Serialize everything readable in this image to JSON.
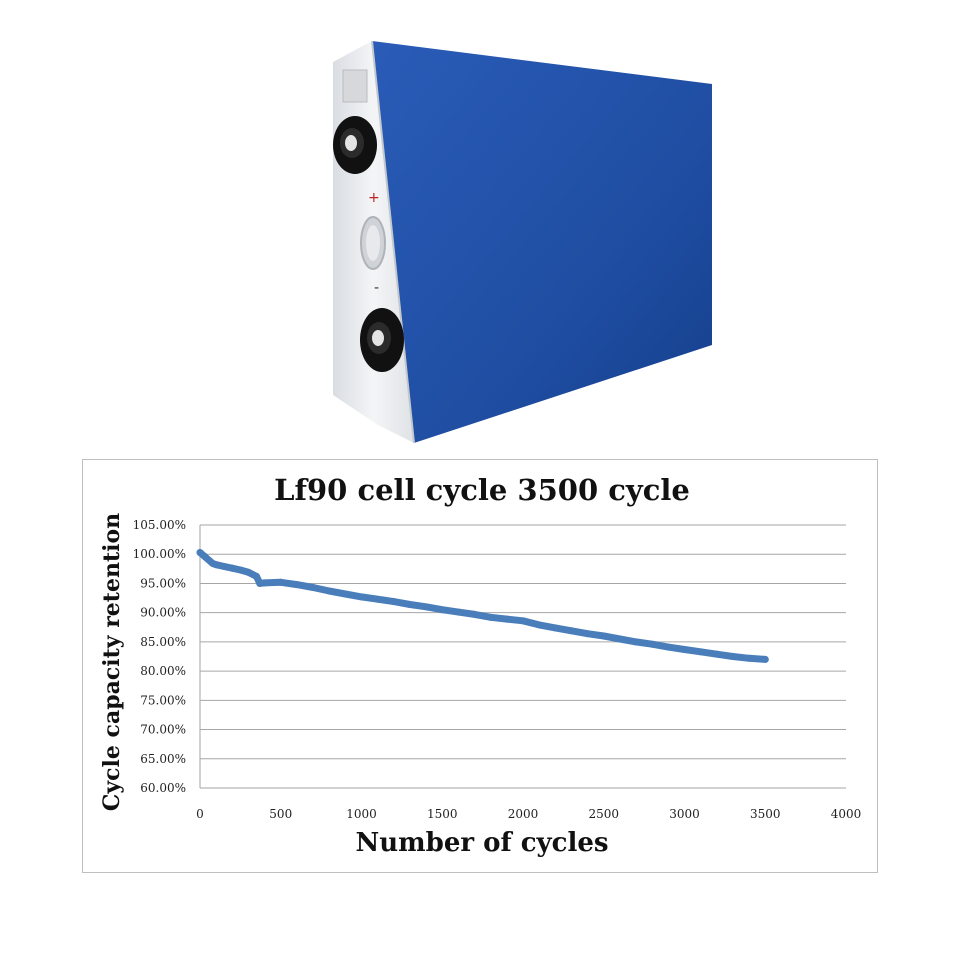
{
  "colors": {
    "battery_body": "#1f4fa6",
    "battery_side": "#e9ecef",
    "series_line": "#4a7ebb",
    "grid": "#a6a6a6"
  },
  "chart_data": {
    "type": "line",
    "title": "Lf90 cell cycle 3500 cycle",
    "xlabel": "Number of cycles",
    "ylabel": "Cycle capacity retention",
    "xlim": [
      0,
      4000
    ],
    "ylim": [
      60,
      105
    ],
    "x_ticks": [
      0,
      500,
      1000,
      1500,
      2000,
      2500,
      3000,
      3500,
      4000
    ],
    "x_tick_labels": [
      "0",
      "500",
      "1000",
      "1500",
      "2000",
      "2500",
      "3000",
      "3500",
      "4000"
    ],
    "y_ticks": [
      60,
      65,
      70,
      75,
      80,
      85,
      90,
      95,
      100,
      105
    ],
    "y_tick_labels": [
      "60.00%",
      "65.00%",
      "70.00%",
      "75.00%",
      "80.00%",
      "85.00%",
      "90.00%",
      "95.00%",
      "100.00%",
      "105.00%"
    ],
    "grid": "horizontal",
    "series": [
      {
        "x": [
          0,
          30,
          80,
          100,
          150,
          200,
          250,
          300,
          350,
          370,
          400,
          500,
          600,
          700,
          800,
          900,
          1000,
          1100,
          1200,
          1300,
          1400,
          1500,
          1600,
          1700,
          1800,
          1900,
          2000,
          2100,
          2200,
          2300,
          2400,
          2500,
          2600,
          2700,
          2800,
          2900,
          3000,
          3100,
          3200,
          3300,
          3400,
          3500
        ],
        "values": [
          100.3,
          99.6,
          98.4,
          98.2,
          97.9,
          97.6,
          97.3,
          96.9,
          96.2,
          95.0,
          95.1,
          95.2,
          94.8,
          94.3,
          93.7,
          93.2,
          92.7,
          92.3,
          91.9,
          91.4,
          91.0,
          90.5,
          90.1,
          89.7,
          89.2,
          88.9,
          88.6,
          87.9,
          87.4,
          86.9,
          86.4,
          86.0,
          85.5,
          85.0,
          84.6,
          84.1,
          83.7,
          83.3,
          82.9,
          82.5,
          82.2,
          82.0
        ]
      }
    ]
  }
}
